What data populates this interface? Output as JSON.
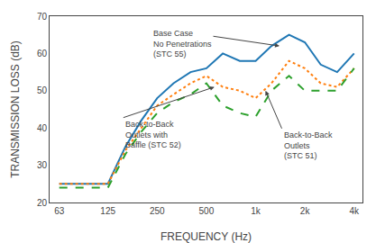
{
  "chart_data": {
    "type": "line",
    "x": [
      63,
      80,
      100,
      125,
      160,
      200,
      250,
      315,
      400,
      500,
      630,
      800,
      1000,
      1250,
      1600,
      2000,
      2500,
      3150,
      4000
    ],
    "series": [
      {
        "values": [
          25,
          25,
          25,
          25,
          35,
          42,
          48,
          52,
          55,
          56,
          60,
          58,
          58,
          62,
          65,
          63,
          57,
          55,
          60
        ],
        "line_style": "solid"
      },
      {
        "values": [
          25,
          25,
          25,
          25,
          34,
          40,
          46,
          49,
          52,
          54,
          51,
          50,
          48,
          52,
          58,
          56,
          52,
          51,
          56
        ],
        "line_style": "dot"
      },
      {
        "values": [
          24,
          24,
          24,
          24,
          33,
          39,
          44,
          47,
          49,
          52,
          46,
          44,
          43,
          50,
          54,
          50,
          50,
          50,
          56
        ],
        "line_style": "dash"
      }
    ],
    "xlabel": "FREQUENCY (Hz)",
    "ylabel": "TRANSMISSION LOSS (dB)",
    "log": "x",
    "xlim": [
      55,
      4500
    ],
    "xticks": [
      63,
      125,
      250,
      500,
      {
        "value": 1000,
        "label": "1k"
      },
      {
        "value": 2000,
        "label": "2k"
      },
      {
        "value": 4000,
        "label": "4k"
      }
    ],
    "ylim": [
      20,
      70
    ],
    "yticks": [
      20,
      30,
      40,
      50,
      60,
      70
    ],
    "grid": false,
    "annotations": [
      {
        "text": "Base Case\nNo Penetrations\n(STC 55)",
        "x": 1400,
        "y": 62
      },
      {
        "text": "Back-to-Back\nOutlets with\nBaffle (STC 52)",
        "x": 560,
        "y": 51
      },
      {
        "text": "Back-to-Back\nOutlets\n(STC 51)",
        "x": 1150,
        "y": 50
      }
    ]
  }
}
